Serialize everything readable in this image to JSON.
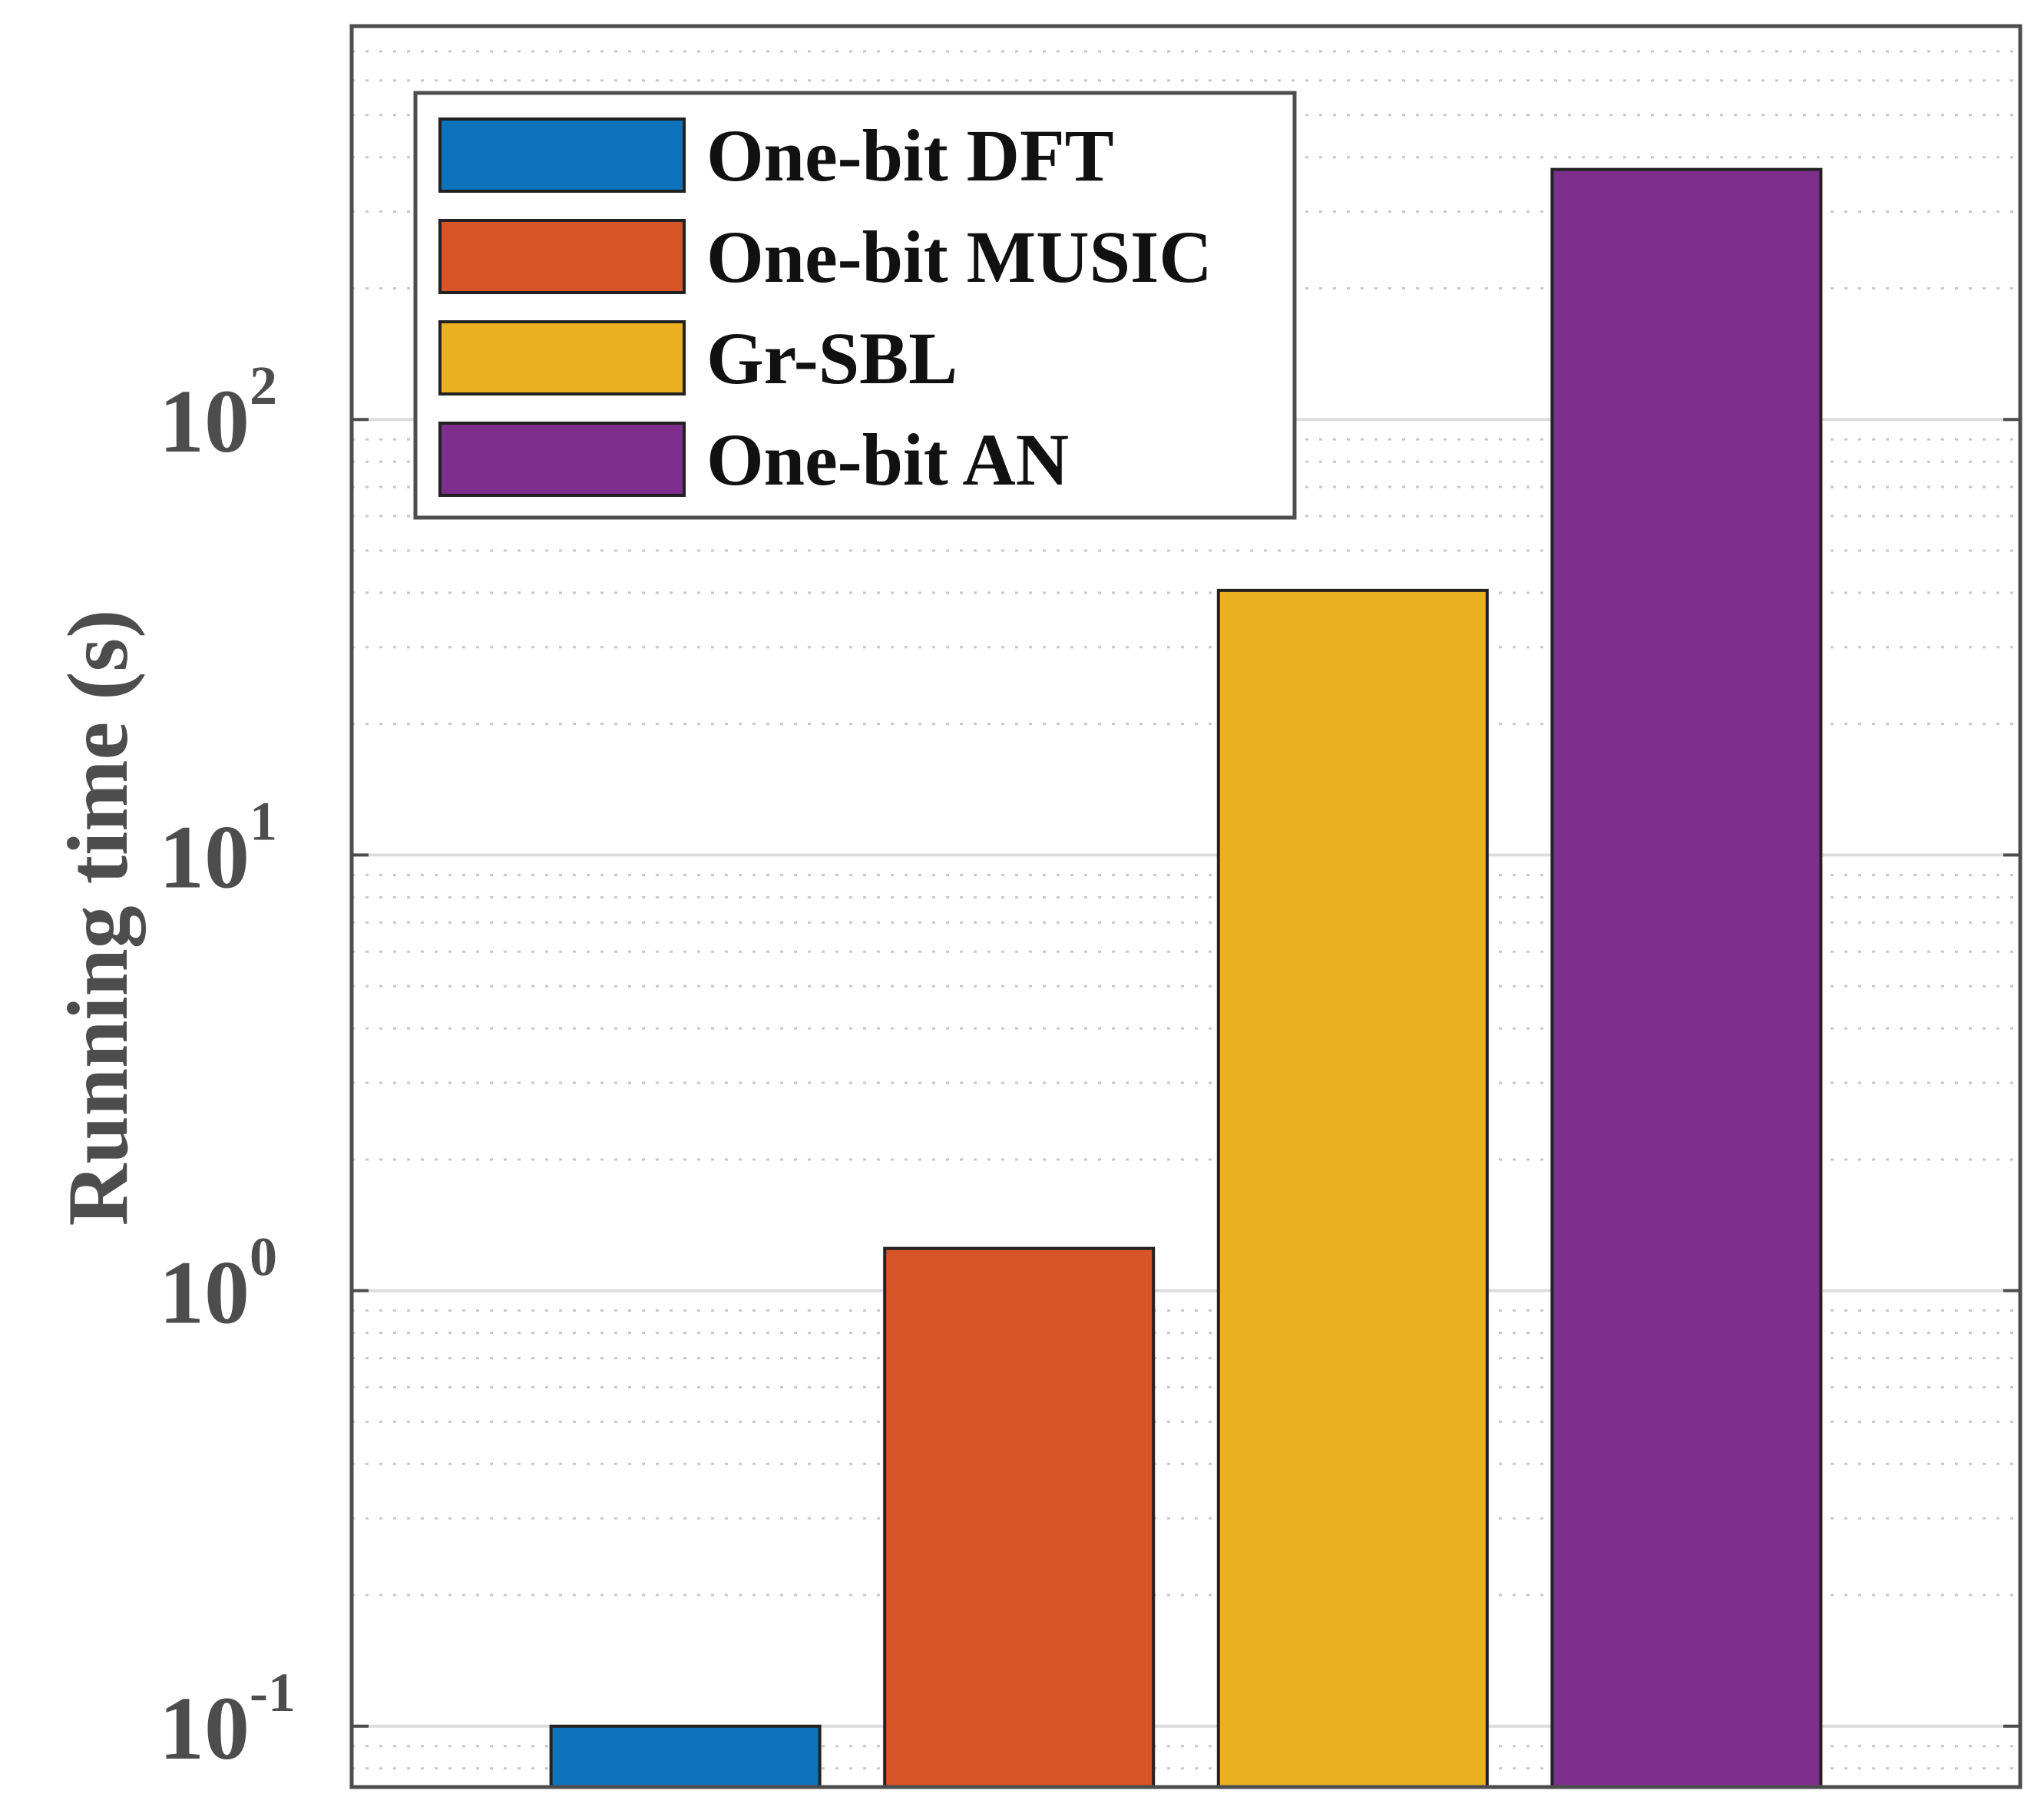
{
  "chart_data": {
    "type": "bar",
    "scale": "log",
    "title": "",
    "xlabel": "",
    "ylabel": "Running time (s)",
    "ylim": [
      0.0725,
      800
    ],
    "yticks": [
      {
        "value": 0.1,
        "base": "10",
        "exponent": "-1"
      },
      {
        "value": 1,
        "base": "10",
        "exponent": "0"
      },
      {
        "value": 10,
        "base": "10",
        "exponent": "1"
      },
      {
        "value": 100,
        "base": "10",
        "exponent": "2"
      }
    ],
    "grid": true,
    "legend_position": "top-left",
    "categories": [
      "One-bit DFT",
      "One-bit MUSIC",
      "Gr-SBL",
      "One-bit AN"
    ],
    "series": [
      {
        "name": "One-bit DFT",
        "value": 0.1,
        "color": "#0E72BD"
      },
      {
        "name": "One-bit MUSIC",
        "value": 1.25,
        "color": "#D95427"
      },
      {
        "name": "Gr-SBL",
        "value": 40.5,
        "color": "#EBB022"
      },
      {
        "name": "One-bit AN",
        "value": 375,
        "color": "#7E2F8E"
      }
    ]
  }
}
